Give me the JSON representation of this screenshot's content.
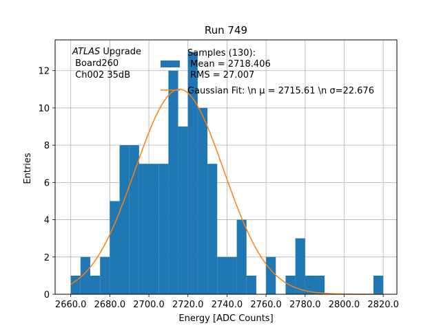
{
  "chart_data": {
    "type": "bar",
    "title": "Run 749",
    "xlabel": "Energy [ADC Counts]",
    "ylabel": "Entries",
    "xlim": [
      2652,
      2827
    ],
    "ylim": [
      0,
      13.65
    ],
    "grid": true,
    "x_ticks": [
      2660.0,
      2680.0,
      2700.0,
      2720.0,
      2740.0,
      2760.0,
      2780.0,
      2800.0,
      2820.0
    ],
    "x_tick_labels": [
      "2660.0",
      "2680.0",
      "2700.0",
      "2720.0",
      "2740.0",
      "2760.0",
      "2780.0",
      "2800.0",
      "2820.0"
    ],
    "y_ticks": [
      0,
      2,
      4,
      6,
      8,
      10,
      12
    ],
    "y_tick_labels": [
      "0",
      "2",
      "4",
      "6",
      "8",
      "10",
      "12"
    ],
    "bin_edges": [
      2660,
      2665,
      2670,
      2675,
      2680,
      2685,
      2690,
      2695,
      2700,
      2705,
      2710,
      2715,
      2720,
      2725,
      2730,
      2735,
      2740,
      2745,
      2750,
      2755,
      2760,
      2765,
      2770,
      2775,
      2780,
      2785,
      2790,
      2795,
      2800,
      2805,
      2810,
      2815,
      2820
    ],
    "counts": [
      1,
      2,
      1,
      2,
      5,
      8,
      8,
      7,
      7,
      7,
      12,
      9,
      13,
      10,
      7,
      2,
      2,
      4,
      1,
      0,
      2,
      0,
      1,
      3,
      1,
      1,
      0,
      0,
      0,
      0,
      0,
      1
    ],
    "series": [
      {
        "name": "Samples (130):\n Mean = 2718.406\n RMS = 27.007",
        "type": "histogram",
        "color": "#1f77b4"
      },
      {
        "name": "Gaussian Fit: \\n $\\mu$ = 2715.61 \\n $\\sigma$=22.676",
        "type": "line",
        "color": "#ff7f0e",
        "amplitude": 11.0,
        "mu": 2715.61,
        "sigma": 22.676,
        "x_range": [
          2660,
          2820
        ]
      }
    ],
    "legend": {
      "placement": "top-right",
      "entries": [
        {
          "lines": [
            "Samples (130):",
            " Mean = 2718.406",
            " RMS = 27.007"
          ]
        },
        {
          "lines": [
            "Gaussian Fit: \\n μ = 2715.61 \\n σ=22.676"
          ]
        }
      ]
    },
    "annotation": {
      "experiment": "ATLAS",
      "rest": " Upgrade",
      "line2": " Board260",
      "line3": " Ch002 35dB"
    }
  }
}
